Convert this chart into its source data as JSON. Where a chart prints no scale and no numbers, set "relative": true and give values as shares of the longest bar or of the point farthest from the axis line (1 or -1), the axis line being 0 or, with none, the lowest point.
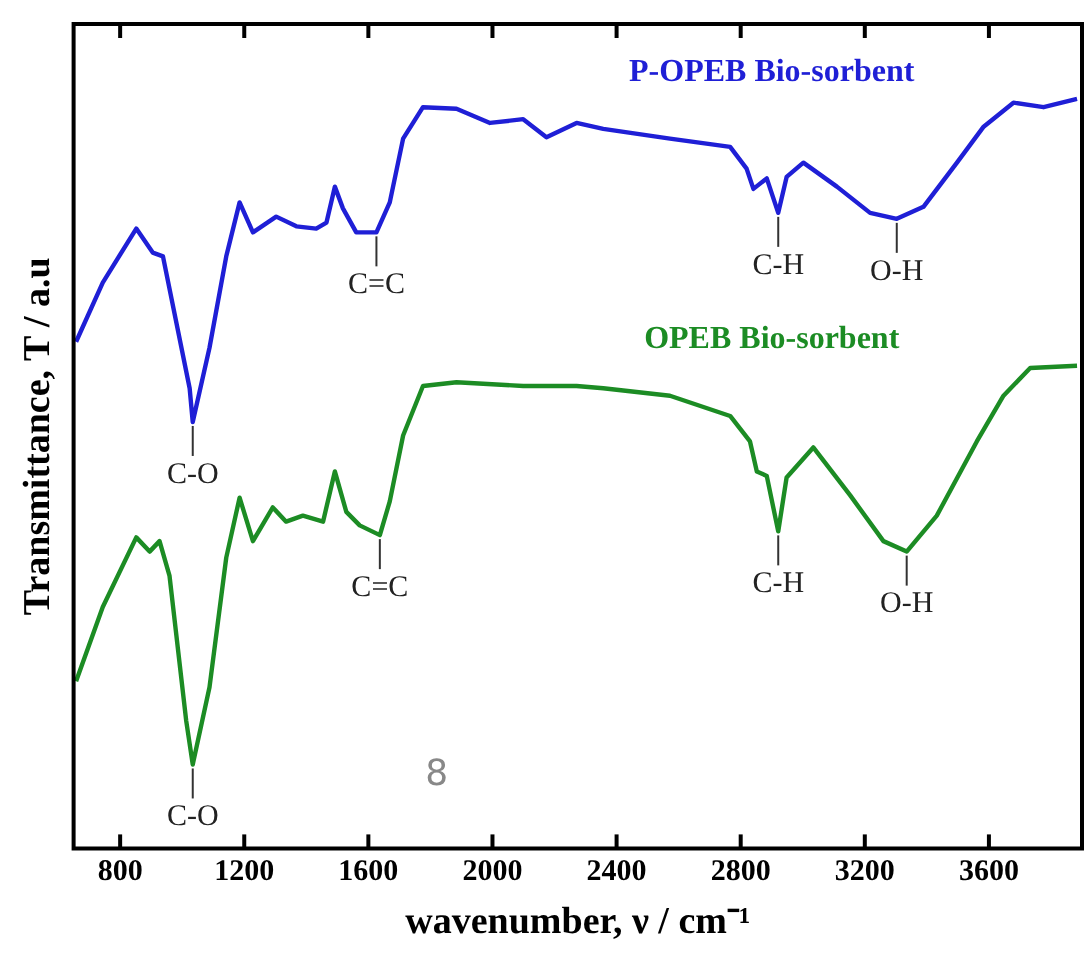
{
  "chart_data": {
    "type": "line",
    "relative": true,
    "xlabel": "wavenumber, ν / cm⁻¹",
    "ylabel": "Transmittance, T / a.u",
    "xlim": [
      650,
      3900
    ],
    "xticks": [
      800,
      1200,
      1600,
      2000,
      2400,
      2800,
      3200,
      3600
    ],
    "grid": false,
    "legend": false,
    "marker": "none",
    "line_style": "solid",
    "series": [
      {
        "name": "P-OPEB Bio-sorbent",
        "color": "#1f1fd6",
        "x": [
          658,
          744,
          852,
          905,
          938,
          1024,
          1034,
          1088,
          1142,
          1185,
          1228,
          1303,
          1368,
          1432,
          1465,
          1492,
          1518,
          1561,
          1626,
          1669,
          1712,
          1776,
          1884,
          1992,
          2099,
          2174,
          2271,
          2357,
          2572,
          2766,
          2819,
          2841,
          2884,
          2921,
          2948,
          3002,
          3110,
          3217,
          3303,
          3389,
          3497,
          3583,
          3679,
          3776,
          3884
        ],
        "values": [
          0.676,
          0.755,
          0.827,
          0.795,
          0.79,
          0.614,
          0.569,
          0.668,
          0.79,
          0.862,
          0.822,
          0.843,
          0.83,
          0.827,
          0.835,
          0.883,
          0.854,
          0.822,
          0.822,
          0.862,
          0.947,
          0.989,
          0.987,
          0.968,
          0.973,
          0.949,
          0.968,
          0.96,
          0.947,
          0.936,
          0.907,
          0.88,
          0.894,
          0.848,
          0.896,
          0.915,
          0.883,
          0.848,
          0.84,
          0.856,
          0.915,
          0.963,
          0.995,
          0.989,
          1
        ]
      },
      {
        "name": "OPEB Bio-sorbent",
        "color": "#1c8c24",
        "x": [
          658,
          744,
          852,
          895,
          927,
          959,
          1013,
          1034,
          1088,
          1142,
          1185,
          1228,
          1292,
          1335,
          1389,
          1454,
          1492,
          1529,
          1572,
          1637,
          1669,
          1712,
          1776,
          1884,
          2099,
          2271,
          2357,
          2572,
          2766,
          2830,
          2852,
          2884,
          2921,
          2948,
          3034,
          3153,
          3260,
          3335,
          3432,
          3561,
          3647,
          3733,
          3884
        ],
        "values": [
          0.223,
          0.322,
          0.415,
          0.396,
          0.41,
          0.364,
          0.17,
          0.112,
          0.215,
          0.388,
          0.468,
          0.41,
          0.455,
          0.436,
          0.444,
          0.436,
          0.503,
          0.449,
          0.431,
          0.418,
          0.463,
          0.551,
          0.617,
          0.622,
          0.617,
          0.617,
          0.614,
          0.604,
          0.577,
          0.543,
          0.503,
          0.497,
          0.423,
          0.495,
          0.535,
          0.471,
          0.41,
          0.396,
          0.444,
          0.543,
          0.604,
          0.641,
          0.644
        ]
      }
    ],
    "annotations": [
      {
        "text": "C-O",
        "x": 1034,
        "y": 0.569
      },
      {
        "text": "C=C",
        "x": 1626,
        "y": 0.822
      },
      {
        "text": "C-H",
        "x": 2921,
        "y": 0.848
      },
      {
        "text": "O-H",
        "x": 3303,
        "y": 0.84
      },
      {
        "text": "C-O",
        "x": 1034,
        "y": 0.112
      },
      {
        "text": "C=C",
        "x": 1637,
        "y": 0.418
      },
      {
        "text": "C-H",
        "x": 2921,
        "y": 0.423
      },
      {
        "text": "O-H",
        "x": 3335,
        "y": 0.396
      },
      "8"
    ]
  }
}
